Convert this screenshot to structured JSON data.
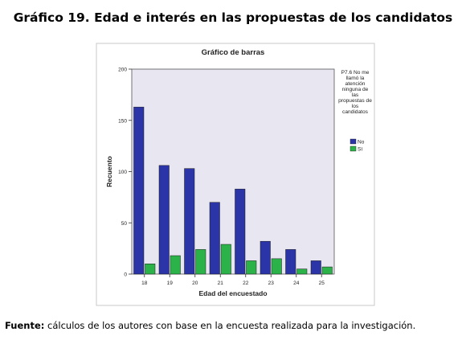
{
  "figure": {
    "title": "Gráfico 19. Edad e interés en las propuestas de los candidatos",
    "source_label": "Fuente:",
    "source_text": "cálculos de los autores con base en la encuesta realizada para la investigación."
  },
  "chart_data": {
    "type": "bar",
    "title": "Gráfico de barras",
    "xlabel": "Edad del encuestado",
    "ylabel": "Recuento",
    "categories": [
      "18",
      "19",
      "20",
      "21",
      "22",
      "23",
      "24",
      "25"
    ],
    "ylim": [
      0,
      200
    ],
    "yticks": [
      "0",
      "50",
      "100",
      "150",
      "200"
    ],
    "series": [
      {
        "name": "No",
        "color": "#2b35a8",
        "values": [
          163,
          106,
          103,
          70,
          83,
          32,
          24,
          13
        ]
      },
      {
        "name": "Sí",
        "color": "#2bb34a",
        "values": [
          10,
          18,
          24,
          29,
          13,
          15,
          5,
          7
        ]
      }
    ],
    "legend": {
      "title": "P7.6 No me llamó la atención ninguna de las propuestas de los candidatos",
      "placement": "right"
    },
    "plot_background": "#e8e6f0",
    "grid": false
  }
}
